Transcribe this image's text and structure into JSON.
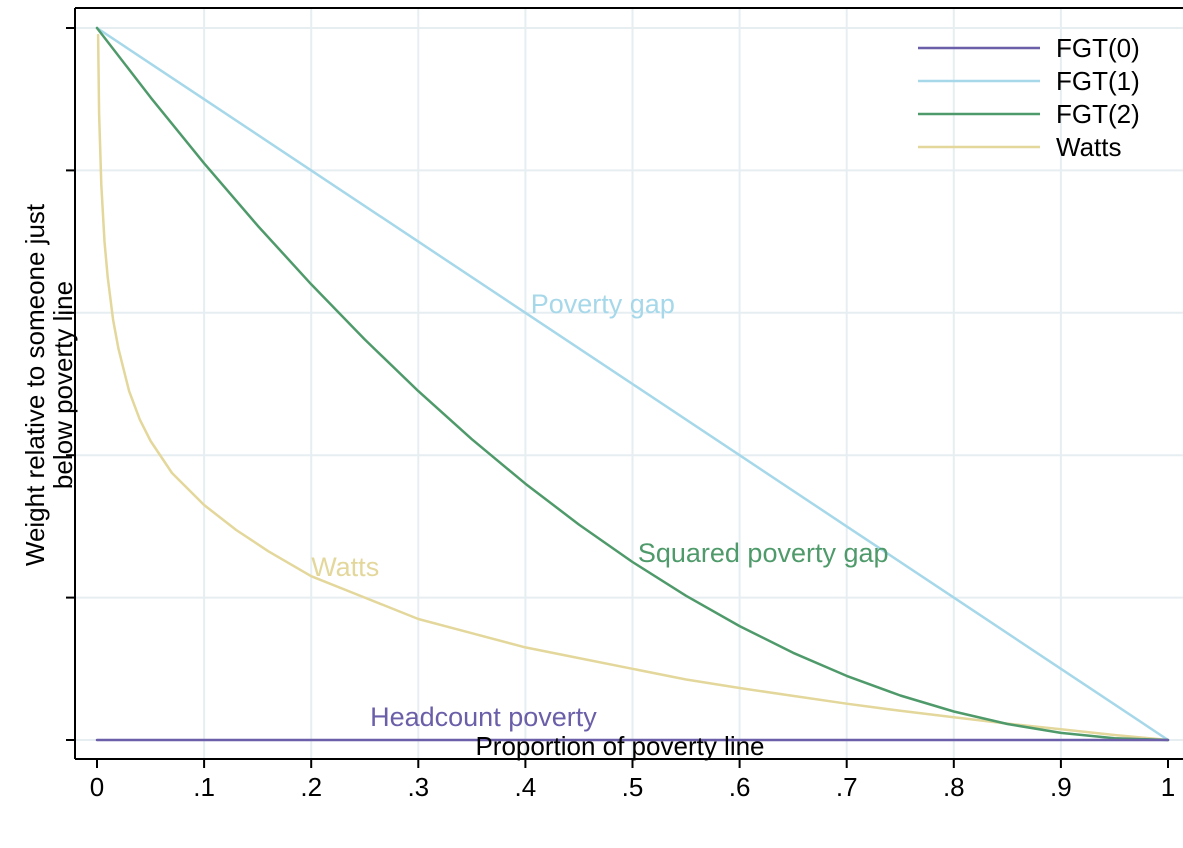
{
  "chart_data": {
    "type": "line",
    "title": "",
    "xlabel": "Proportion of poverty line",
    "ylabel": [
      "Weight relative to someone just",
      "below poverty line"
    ],
    "xlim": [
      0,
      1
    ],
    "ylim": [
      0,
      1
    ],
    "grid": true,
    "legend_position": "top-right",
    "x_ticks": [
      0,
      0.1,
      0.2,
      0.3,
      0.4,
      0.5,
      0.6,
      0.7,
      0.8,
      0.9,
      1
    ],
    "x_tick_labels": [
      "0",
      ".1",
      ".2",
      ".3",
      ".4",
      ".5",
      ".6",
      ".7",
      ".8",
      ".9",
      "1"
    ],
    "y_ticks": [
      0,
      0.2,
      0.4,
      0.6,
      0.8,
      1.0
    ],
    "series": [
      {
        "name": "FGT(0)",
        "color": "#6a5fa8",
        "x": [
          0,
          0.1,
          0.2,
          0.3,
          0.4,
          0.5,
          0.6,
          0.7,
          0.8,
          0.9,
          1.0
        ],
        "y": [
          0,
          0,
          0,
          0,
          0,
          0,
          0,
          0,
          0,
          0,
          0
        ]
      },
      {
        "name": "FGT(1)",
        "color": "#a6d8ea",
        "x": [
          0,
          0.1,
          0.2,
          0.3,
          0.4,
          0.5,
          0.6,
          0.7,
          0.8,
          0.9,
          1.0
        ],
        "y": [
          1.0,
          0.9,
          0.8,
          0.7,
          0.6,
          0.5,
          0.4,
          0.3,
          0.2,
          0.1,
          0.0
        ]
      },
      {
        "name": "FGT(2)",
        "color": "#4f9a6a",
        "x": [
          0,
          0.05,
          0.1,
          0.15,
          0.2,
          0.25,
          0.3,
          0.35,
          0.4,
          0.45,
          0.5,
          0.55,
          0.6,
          0.65,
          0.7,
          0.75,
          0.8,
          0.85,
          0.9,
          0.95,
          1.0
        ],
        "y": [
          1.0,
          0.9025,
          0.81,
          0.7225,
          0.64,
          0.5625,
          0.49,
          0.4225,
          0.36,
          0.3025,
          0.25,
          0.2025,
          0.16,
          0.1225,
          0.09,
          0.0625,
          0.04,
          0.0225,
          0.01,
          0.0025,
          0.0
        ]
      },
      {
        "name": "Watts",
        "color": "#e3d79b",
        "x": [
          0.001,
          0.002,
          0.004,
          0.007,
          0.01,
          0.015,
          0.02,
          0.03,
          0.04,
          0.05,
          0.07,
          0.1,
          0.13,
          0.16,
          0.2,
          0.25,
          0.3,
          0.35,
          0.4,
          0.45,
          0.5,
          0.55,
          0.6,
          0.65,
          0.7,
          0.75,
          0.8,
          0.85,
          0.9,
          0.95,
          1.0
        ],
        "y": [
          0.99,
          0.88,
          0.78,
          0.7,
          0.65,
          0.59,
          0.55,
          0.49,
          0.45,
          0.42,
          0.375,
          0.33,
          0.295,
          0.265,
          0.23,
          0.2,
          0.17,
          0.15,
          0.13,
          0.115,
          0.1,
          0.085,
          0.073,
          0.062,
          0.051,
          0.041,
          0.032,
          0.023,
          0.015,
          0.007,
          0.0
        ]
      }
    ],
    "annotations": [
      {
        "text": "Poverty gap",
        "x": 0.405,
        "y": 0.6,
        "color": "#a6d8ea"
      },
      {
        "text": "Squared poverty gap",
        "x": 0.505,
        "y": 0.25,
        "color": "#4f9a6a"
      },
      {
        "text": "Watts",
        "x": 0.2,
        "y": 0.23,
        "color": "#e3d79b"
      },
      {
        "text": "Headcount poverty",
        "x": 0.255,
        "y": 0.02,
        "color": "#6a5fa8"
      }
    ]
  }
}
